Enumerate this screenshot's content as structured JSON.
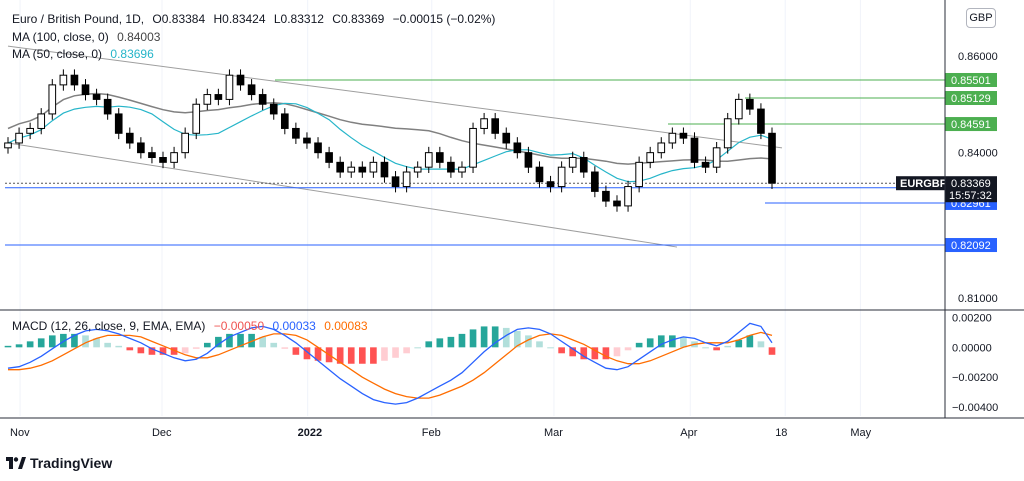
{
  "header": {
    "symbol_title": "Euro / British Pound, 1D,",
    "ohlc": {
      "open": "O0.83384",
      "high": "H0.83424",
      "low": "L0.83312",
      "close": "C0.83369",
      "change": "−0.00015 (−0.02%)"
    },
    "ma100": {
      "label": "MA (100, close, 0)",
      "value": "0.84003",
      "color": "#444444"
    },
    "ma50": {
      "label": "MA (50, close, 0)",
      "value": "0.83696",
      "color": "#26b5c9"
    }
  },
  "macd_legend": {
    "label": "MACD (12, 26, close, 9, EMA, EMA)",
    "hist": "−0.00050",
    "macd": "0.00033",
    "signal": "0.00083",
    "hist_color": "#ef5350",
    "macd_color": "#2962ff",
    "signal_color": "#ff6d00"
  },
  "currency_badge": "GBP",
  "brand": "TradingView",
  "colors": {
    "bull_body": "#ffffff",
    "bear_body": "#000000",
    "ma50": "#26b5c9",
    "ma100": "#808080",
    "green_line": "#4caf50",
    "blue_line": "#2962ff",
    "channel": "#9e9e9e",
    "macd_line": "#2962ff",
    "signal_line": "#ff6d00",
    "hist_pos_strong": "#26a69a",
    "hist_pos_weak": "#b2dfdb",
    "hist_neg_strong": "#ff5252",
    "hist_neg_weak": "#ffcdd2"
  },
  "chart_data": {
    "type": "candlestick",
    "price_axis": {
      "ylim": [
        0.8075,
        0.8705
      ],
      "tick_labels": [
        "0.86000",
        "0.84000",
        "0.81000"
      ]
    },
    "x_axis": {
      "tick_labels": [
        "Nov",
        "Dec",
        "2022",
        "Feb",
        "Mar",
        "Apr",
        "18",
        "May"
      ]
    },
    "price_series_close": [
      0.842,
      0.844,
      0.845,
      0.848,
      0.854,
      0.856,
      0.854,
      0.852,
      0.851,
      0.848,
      0.844,
      0.842,
      0.84,
      0.839,
      0.838,
      0.84,
      0.844,
      0.85,
      0.852,
      0.851,
      0.856,
      0.854,
      0.852,
      0.85,
      0.848,
      0.845,
      0.843,
      0.842,
      0.84,
      0.838,
      0.836,
      0.837,
      0.836,
      0.838,
      0.835,
      0.833,
      0.836,
      0.837,
      0.84,
      0.838,
      0.836,
      0.837,
      0.845,
      0.847,
      0.844,
      0.842,
      0.84,
      0.837,
      0.834,
      0.833,
      0.837,
      0.839,
      0.836,
      0.832,
      0.83,
      0.829,
      0.833,
      0.838,
      0.84,
      0.842,
      0.844,
      0.843,
      0.838,
      0.837,
      0.841,
      0.847,
      0.851,
      0.849,
      0.844,
      0.8337
    ],
    "ma50": {
      "name": "MA (50, close, 0)",
      "last": 0.83696
    },
    "ma100": {
      "name": "MA (100, close, 0)",
      "last": 0.84003
    },
    "horizontal_levels": [
      {
        "value": 0.85501,
        "label": "0.85501",
        "color": "#4caf50"
      },
      {
        "value": 0.85129,
        "label": "0.85129",
        "color": "#4caf50"
      },
      {
        "value": 0.84591,
        "label": "0.84591",
        "color": "#4caf50"
      },
      {
        "value": 0.83274,
        "label": "0.83274",
        "color": "#2962ff"
      },
      {
        "value": 0.82961,
        "label": "0.82961",
        "color": "#2962ff"
      },
      {
        "value": 0.82092,
        "label": "0.82092",
        "color": "#2962ff"
      }
    ],
    "last_price": {
      "ticker": "EURGBP",
      "value": "0.83369",
      "countdown": "15:57:32"
    },
    "macd_panel": {
      "ylim": [
        -0.0046,
        0.0025
      ],
      "tick_labels": [
        "0.00200",
        "0.00000",
        "−0.00200",
        "−0.00400"
      ],
      "macd": [
        -0.0014,
        -0.0013,
        -0.001,
        -0.0006,
        -0.0001,
        0.0004,
        0.0008,
        0.0011,
        0.0012,
        0.0011,
        0.0009,
        0.0006,
        0.0003,
        -0.0001,
        -0.0004,
        -0.0007,
        -0.0009,
        -0.0008,
        -0.0004,
        0.0002,
        0.0007,
        0.001,
        0.0013,
        0.0014,
        0.0012,
        0.0008,
        0.0003,
        -0.0003,
        -0.0009,
        -0.0015,
        -0.0021,
        -0.0026,
        -0.0031,
        -0.0035,
        -0.0037,
        -0.0038,
        -0.0037,
        -0.0034,
        -0.003,
        -0.0026,
        -0.0022,
        -0.0017,
        -0.001,
        -0.0003,
        0.0003,
        0.0008,
        0.0012,
        0.0013,
        0.0012,
        0.0009,
        0.0004,
        -0.0001,
        -0.0006,
        -0.001,
        -0.0014,
        -0.0015,
        -0.0013,
        -0.0008,
        -0.0003,
        0.0002,
        0.0005,
        0.0007,
        0.0006,
        0.0003,
        0.0001,
        0.0004,
        0.001,
        0.0016,
        0.0014,
        0.0003
      ],
      "signal": [
        -0.0015,
        -0.0015,
        -0.0014,
        -0.0012,
        -0.0009,
        -0.0005,
        -0.0001,
        0.0003,
        0.0006,
        0.0008,
        0.0008,
        0.0008,
        0.0007,
        0.0004,
        0.0001,
        -0.0002,
        -0.0005,
        -0.0007,
        -0.0007,
        -0.0005,
        -0.0002,
        0.0001,
        0.0004,
        0.0007,
        0.0009,
        0.0009,
        0.0008,
        0.0005,
        0.0,
        -0.0005,
        -0.001,
        -0.0015,
        -0.002,
        -0.0024,
        -0.0028,
        -0.0031,
        -0.0033,
        -0.0034,
        -0.0034,
        -0.0032,
        -0.0029,
        -0.0026,
        -0.0022,
        -0.0017,
        -0.0011,
        -0.0005,
        0.0001,
        0.0005,
        0.0008,
        0.0009,
        0.0008,
        0.0005,
        0.0002,
        -0.0002,
        -0.0006,
        -0.0009,
        -0.0011,
        -0.0011,
        -0.0009,
        -0.0006,
        -0.0003,
        0.0,
        0.0002,
        0.0003,
        0.0003,
        0.0003,
        0.0005,
        0.0008,
        0.001,
        0.0008
      ]
    }
  }
}
